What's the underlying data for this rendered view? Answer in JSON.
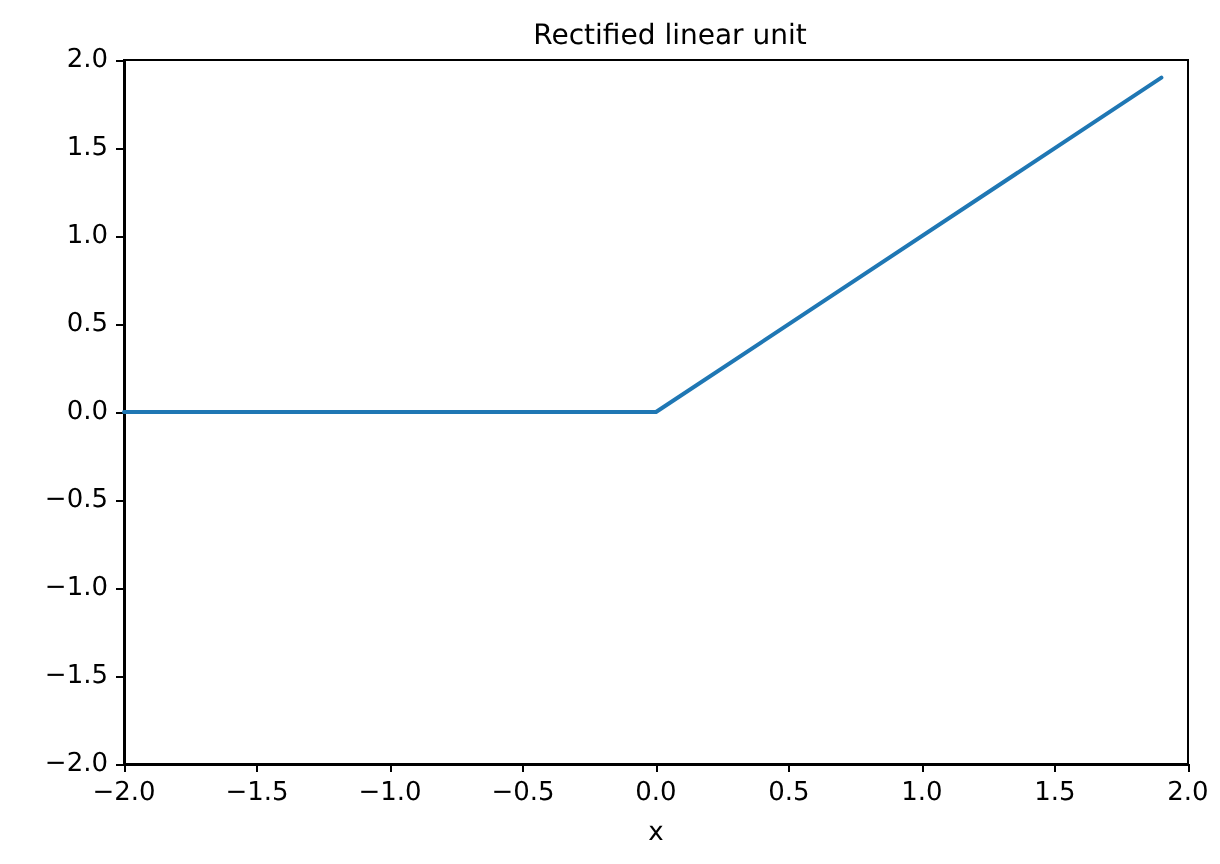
{
  "chart_data": {
    "type": "line",
    "title": "Rectified linear unit",
    "xlabel": "x",
    "x": [
      -2,
      0,
      1.9
    ],
    "series": [
      {
        "color": "#1f77b4",
        "values": [
          0,
          0,
          1.9
        ]
      }
    ],
    "xlim": [
      -2,
      2
    ],
    "xticks": [
      {
        "value": -2,
        "label": "−2.0"
      },
      {
        "value": -1.5,
        "label": "−1.5"
      },
      {
        "value": -1,
        "label": "−1.0"
      },
      {
        "value": -0.5,
        "label": "−0.5"
      },
      {
        "value": 0,
        "label": "0.0"
      },
      {
        "value": 0.5,
        "label": "0.5"
      },
      {
        "value": 1,
        "label": "1.0"
      },
      {
        "value": 1.5,
        "label": "1.5"
      },
      {
        "value": 2,
        "label": "2.0"
      }
    ],
    "ylim": [
      -2,
      2
    ],
    "yticks": [
      {
        "value": -2,
        "label": "−2.0"
      },
      {
        "value": -1.5,
        "label": "−1.5"
      },
      {
        "value": -1,
        "label": "−1.0"
      },
      {
        "value": -0.5,
        "label": "−0.5"
      },
      {
        "value": 0,
        "label": "0.0"
      },
      {
        "value": 0.5,
        "label": "0.5"
      },
      {
        "value": 1,
        "label": "1.0"
      },
      {
        "value": 1.5,
        "label": "1.5"
      },
      {
        "value": 2,
        "label": "2.0"
      }
    ],
    "grid": false,
    "marker": "none",
    "line_style": "solid"
  }
}
